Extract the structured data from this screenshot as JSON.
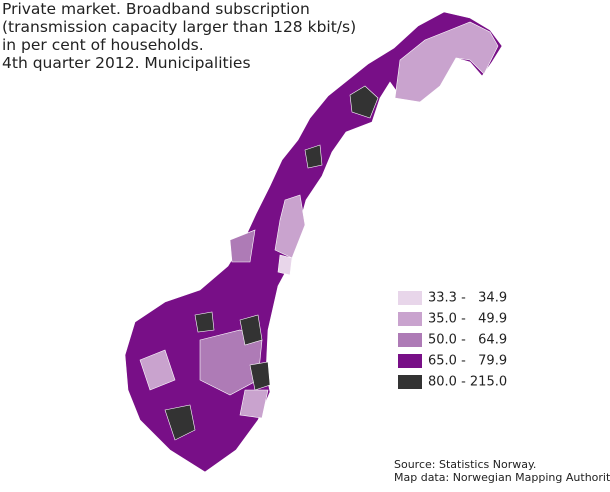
{
  "title": [
    "Private market. Broadband subscription",
    "(transmission capacity larger than 128 kbit/s)",
    "in per cent of households.",
    "4th quarter 2012. Municipalities"
  ],
  "legend": {
    "items": [
      {
        "label": "33.3 -   34.9",
        "color": "#e8d6ea"
      },
      {
        "label": "35.0 -   49.9",
        "color": "#c9a3ce"
      },
      {
        "label": "50.0 -   64.9",
        "color": "#ae7bb6"
      },
      {
        "label": "65.0 -   79.9",
        "color": "#780f87"
      },
      {
        "label": "80.0 - 215.0",
        "color": "#333333"
      }
    ]
  },
  "source": [
    "Source: Statistics Norway.",
    "Map data: Norwegian Mapping Authority"
  ]
}
